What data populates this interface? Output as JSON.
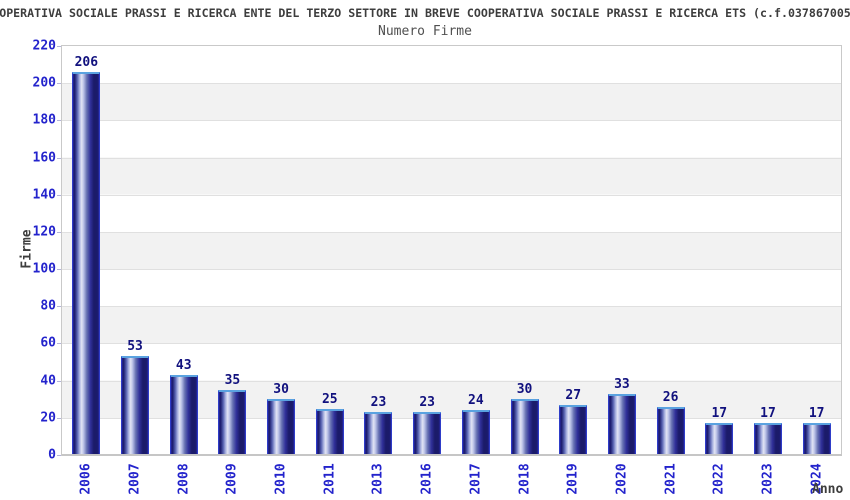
{
  "header": {
    "title": "OPERATIVA SOCIALE PRASSI E RICERCA ENTE DEL TERZO SETTORE IN BREVE COOPERATIVA SOCIALE PRASSI E RICERCA ETS (c.f.037867005",
    "subtitle": "Numero Firme"
  },
  "chart_data": {
    "type": "bar",
    "title": "Numero Firme",
    "categories": [
      "2006",
      "2007",
      "2008",
      "2009",
      "2010",
      "2011",
      "2013",
      "2016",
      "2017",
      "2018",
      "2019",
      "2020",
      "2021",
      "2022",
      "2023",
      "2024"
    ],
    "values": [
      206,
      53,
      43,
      35,
      30,
      25,
      23,
      23,
      24,
      30,
      27,
      33,
      26,
      17,
      17,
      17
    ],
    "xlabel": "Anno",
    "ylabel": "Firme",
    "ylim": [
      0,
      220
    ],
    "ytick_step": 20,
    "yticks": [
      0,
      20,
      40,
      60,
      80,
      100,
      120,
      140,
      160,
      180,
      200,
      220
    ],
    "grid": "horizontal-bands",
    "legend": "none",
    "bar_value_labels_shown": true,
    "colors": {
      "tick_label_blue": "#2323cc",
      "value_label_navy": "#11117e",
      "bar_dark": "#1b1b6a",
      "bar_light_center": "#e2e5f4",
      "bar_edge_blue": "#2e3cc8",
      "bar_top_highlight": "#5aa2e0",
      "band_gray": "#f2f2f2",
      "gridline": "#e0e0e0",
      "axis_gray": "#c6c6c6",
      "title_text": "#3d3d3d",
      "subtitle_text": "#505050",
      "background": "#ffffff"
    }
  }
}
